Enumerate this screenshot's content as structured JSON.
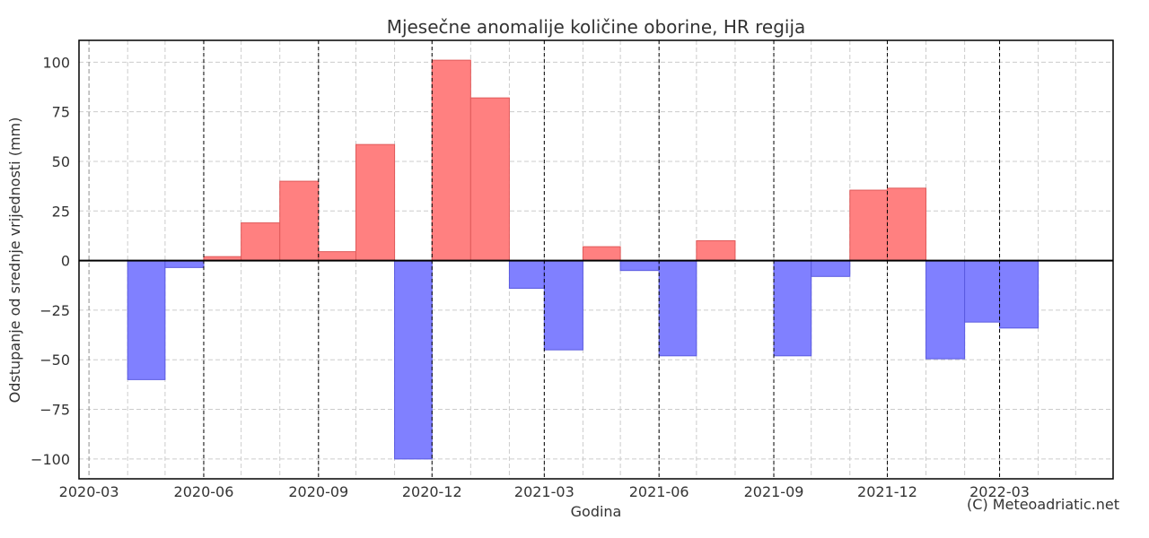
{
  "chart_data": {
    "type": "bar",
    "title": "Mjesečne anomalije količine oborine, HR regija",
    "xlabel": "Godina",
    "ylabel": "Odstupanje od srednje vrijednosti (mm)",
    "credit": "(C) Meteoadriatic.net",
    "ylim": [
      -110,
      111
    ],
    "xlim": [
      "2020-02-22",
      "2022-05-31"
    ],
    "yticks": [
      100,
      75,
      50,
      25,
      0,
      -25,
      -50,
      -75,
      -100
    ],
    "ytick_labels": [
      "100",
      "75",
      "50",
      "25",
      "0",
      "−25",
      "−50",
      "−75",
      "−100"
    ],
    "xticks": [
      {
        "label": "2020-03",
        "date": "2020-03-01",
        "year_mark": false
      },
      {
        "label": "2020-06",
        "date": "2020-06-01",
        "year_mark": true
      },
      {
        "label": "2020-09",
        "date": "2020-09-01",
        "year_mark": true
      },
      {
        "label": "2020-12",
        "date": "2020-12-01",
        "year_mark": true
      },
      {
        "label": "2021-03",
        "date": "2021-03-01",
        "year_mark": true
      },
      {
        "label": "2021-06",
        "date": "2021-06-01",
        "year_mark": true
      },
      {
        "label": "2021-09",
        "date": "2021-09-01",
        "year_mark": true
      },
      {
        "label": "2021-12",
        "date": "2021-12-01",
        "year_mark": true
      },
      {
        "label": "2022-03",
        "date": "2022-03-01",
        "year_mark": true
      }
    ],
    "grid": true,
    "positive_color": "#ff8080",
    "negative_color": "#8080ff",
    "positive_edge": "#e05a5a",
    "negative_edge": "#5a5ae0",
    "months": [
      {
        "month": "2020-04",
        "value": -60
      },
      {
        "month": "2020-05",
        "value": -3.5
      },
      {
        "month": "2020-06",
        "value": 2
      },
      {
        "month": "2020-07",
        "value": 19
      },
      {
        "month": "2020-08",
        "value": 40
      },
      {
        "month": "2020-09",
        "value": 4.5
      },
      {
        "month": "2020-10",
        "value": 58.5
      },
      {
        "month": "2020-11",
        "value": -100
      },
      {
        "month": "2020-12",
        "value": 101
      },
      {
        "month": "2021-01",
        "value": 82
      },
      {
        "month": "2021-02",
        "value": -14
      },
      {
        "month": "2021-03",
        "value": -45
      },
      {
        "month": "2021-04",
        "value": 7
      },
      {
        "month": "2021-05",
        "value": -5
      },
      {
        "month": "2021-06",
        "value": -48
      },
      {
        "month": "2021-07",
        "value": 10
      },
      {
        "month": "2021-08",
        "value": 0
      },
      {
        "month": "2021-09",
        "value": -48
      },
      {
        "month": "2021-10",
        "value": -8
      },
      {
        "month": "2021-11",
        "value": 35.5
      },
      {
        "month": "2021-12",
        "value": 36.5
      },
      {
        "month": "2022-01",
        "value": -49.5
      },
      {
        "month": "2022-02",
        "value": -31
      },
      {
        "month": "2022-03",
        "value": -34
      }
    ]
  }
}
